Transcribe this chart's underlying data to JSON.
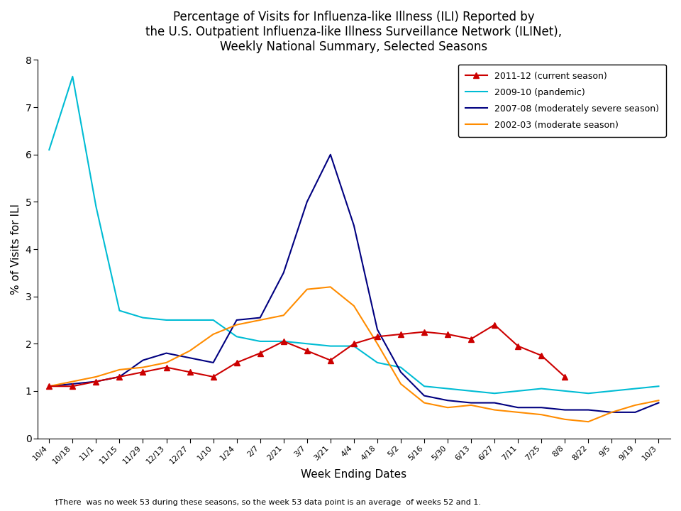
{
  "title": "Percentage of Visits for Influenza-like Illness (ILI) Reported by\nthe U.S. Outpatient Influenza-like Illness Surveillance Network (ILINet),\nWeekly National Summary, Selected Seasons",
  "xlabel": "Week Ending Dates",
  "ylabel": "% of Visits for ILI",
  "footnote": "†There  was no week 53 during these seasons, so the week 53 data point is an average  of weeks 52 and 1.",
  "ylim": [
    0,
    8
  ],
  "yticks": [
    0,
    1,
    2,
    3,
    4,
    5,
    6,
    7,
    8
  ],
  "x_labels": [
    "10/4",
    "10/18",
    "11/1",
    "11/15",
    "11/29",
    "12/13",
    "12/27",
    "1/10",
    "1/24",
    "2/7",
    "2/21",
    "3/7",
    "3/21",
    "4/4",
    "4/18",
    "5/2",
    "5/16",
    "5/30",
    "6/13",
    "6/27",
    "7/11",
    "7/25",
    "8/8",
    "8/22",
    "9/5",
    "9/19",
    "10/3"
  ],
  "series_2011_12": {
    "label": "2011-12 (current season)",
    "color": "#cc0000",
    "marker": "^",
    "values": [
      1.1,
      1.1,
      1.2,
      1.3,
      1.4,
      1.5,
      1.4,
      1.3,
      1.6,
      1.8,
      2.05,
      1.85,
      1.65,
      2.0,
      2.15,
      2.2,
      2.25,
      2.2,
      2.1,
      2.4,
      1.95,
      1.75,
      1.3,
      null,
      null,
      null,
      null
    ]
  },
  "series_2009_10": {
    "label": "2009-10 (pandemic)",
    "color": "#00bcd4",
    "marker": null,
    "values": [
      6.1,
      7.65,
      4.9,
      2.7,
      2.55,
      2.5,
      2.5,
      2.5,
      2.15,
      2.05,
      2.05,
      2.0,
      1.95,
      1.95,
      1.6,
      1.5,
      1.1,
      1.05,
      1.0,
      0.95,
      1.0,
      1.05,
      1.0,
      0.95,
      1.0,
      1.05,
      1.1
    ]
  },
  "series_2007_08": {
    "label": "2007-08 (moderately severe season)",
    "color": "#000080",
    "marker": null,
    "values": [
      1.1,
      1.15,
      1.2,
      1.3,
      1.65,
      1.8,
      1.7,
      1.6,
      2.5,
      2.55,
      3.5,
      5.0,
      6.0,
      4.5,
      2.3,
      1.4,
      0.9,
      0.8,
      0.75,
      0.75,
      0.65,
      0.65,
      0.6,
      0.6,
      0.55,
      0.55,
      0.75
    ]
  },
  "series_2002_03": {
    "label": "2002-03 (moderate season)",
    "color": "#ff8c00",
    "marker": null,
    "values": [
      1.1,
      1.2,
      1.3,
      1.45,
      1.5,
      1.6,
      1.85,
      2.2,
      2.4,
      2.5,
      2.6,
      3.15,
      3.2,
      2.8,
      2.0,
      1.15,
      0.75,
      0.65,
      0.7,
      0.6,
      0.55,
      0.5,
      0.4,
      0.35,
      0.55,
      0.7,
      0.8
    ]
  }
}
